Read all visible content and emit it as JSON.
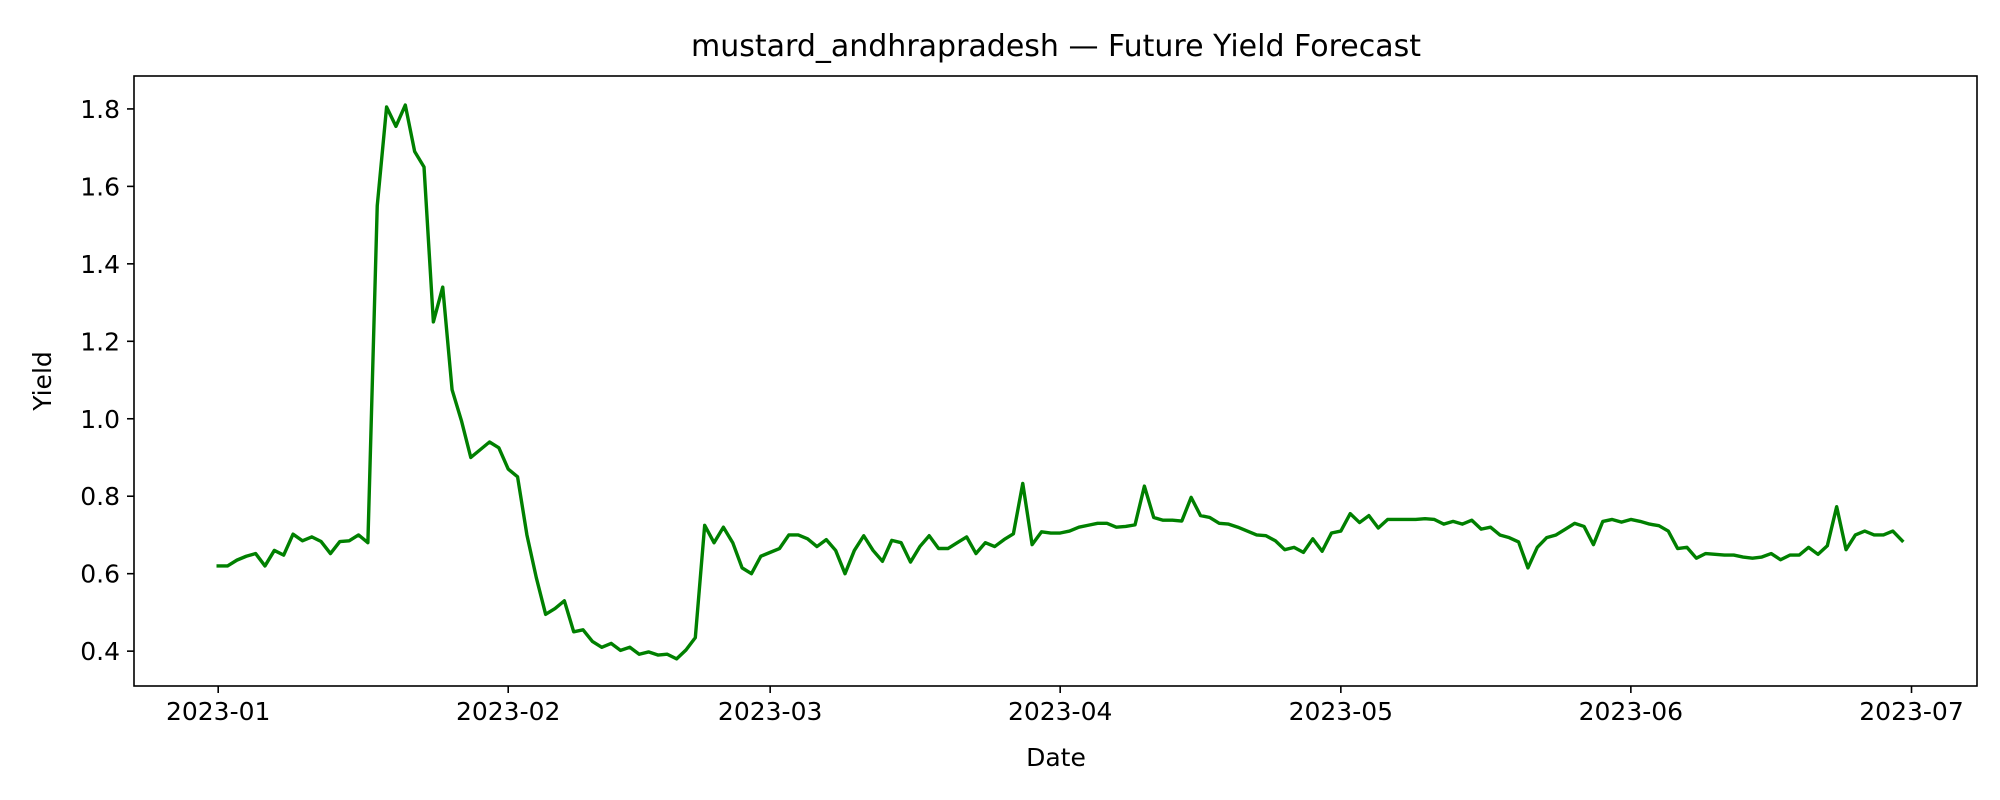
{
  "chart_data": {
    "type": "line",
    "title": "mustard_andhrapradesh — Future Yield Forecast",
    "xlabel": "Date",
    "ylabel": "Yield",
    "xlim": [
      "2022-12-23",
      "2023-07-08"
    ],
    "ylim": [
      0.31,
      1.885
    ],
    "x_ticks": [
      "2023-01-01",
      "2023-02-01",
      "2023-03-01",
      "2023-04-01",
      "2023-05-01",
      "2023-06-01",
      "2023-07-01"
    ],
    "x_tick_labels": [
      "2023-01",
      "2023-02",
      "2023-03",
      "2023-04",
      "2023-05",
      "2023-06",
      "2023-07"
    ],
    "y_ticks": [
      0.4,
      0.6,
      0.8,
      1.0,
      1.2,
      1.4,
      1.6,
      1.8
    ],
    "y_tick_labels": [
      "0.4",
      "0.6",
      "0.8",
      "1.0",
      "1.2",
      "1.4",
      "1.6",
      "1.8"
    ],
    "grid": false,
    "series": [
      {
        "color": "#008000",
        "start_date": "2023-01-01",
        "step_days": 1,
        "values": [
          0.62,
          0.62,
          0.635,
          0.645,
          0.652,
          0.62,
          0.66,
          0.648,
          0.702,
          0.685,
          0.695,
          0.683,
          0.652,
          0.683,
          0.685,
          0.7,
          0.68,
          1.55,
          1.805,
          1.755,
          1.81,
          1.69,
          1.65,
          1.25,
          1.34,
          1.075,
          0.995,
          0.9,
          0.92,
          0.94,
          0.925,
          0.87,
          0.85,
          0.7,
          0.59,
          0.495,
          0.51,
          0.53,
          0.45,
          0.455,
          0.425,
          0.41,
          0.42,
          0.402,
          0.41,
          0.392,
          0.398,
          0.39,
          0.392,
          0.38,
          0.403,
          0.435,
          0.725,
          0.68,
          0.72,
          0.68,
          0.615,
          0.6,
          0.645,
          0.655,
          0.665,
          0.7,
          0.7,
          0.69,
          0.67,
          0.688,
          0.66,
          0.6,
          0.66,
          0.698,
          0.66,
          0.632,
          0.686,
          0.68,
          0.63,
          0.67,
          0.698,
          0.665,
          0.665,
          0.68,
          0.695,
          0.652,
          0.68,
          0.67,
          0.688,
          0.703,
          0.833,
          0.675,
          0.708,
          0.705,
          0.705,
          0.71,
          0.72,
          0.725,
          0.73,
          0.73,
          0.72,
          0.722,
          0.726,
          0.826,
          0.745,
          0.738,
          0.738,
          0.736,
          0.797,
          0.75,
          0.745,
          0.73,
          0.728,
          0.72,
          0.71,
          0.7,
          0.698,
          0.685,
          0.662,
          0.668,
          0.655,
          0.69,
          0.658,
          0.705,
          0.71,
          0.755,
          0.732,
          0.75,
          0.718,
          0.74,
          0.74,
          0.74,
          0.74,
          0.742,
          0.74,
          0.728,
          0.735,
          0.728,
          0.738,
          0.715,
          0.72,
          0.7,
          0.693,
          0.682,
          0.615,
          0.668,
          0.693,
          0.7,
          0.715,
          0.73,
          0.722,
          0.675,
          0.735,
          0.74,
          0.733,
          0.74,
          0.735,
          0.728,
          0.724,
          0.71,
          0.665,
          0.668,
          0.64,
          0.652,
          0.65,
          0.648,
          0.648,
          0.643,
          0.64,
          0.643,
          0.652,
          0.636,
          0.648,
          0.648,
          0.668,
          0.65,
          0.672,
          0.773,
          0.662,
          0.7,
          0.71,
          0.7,
          0.7,
          0.71,
          0.685
        ]
      }
    ]
  }
}
